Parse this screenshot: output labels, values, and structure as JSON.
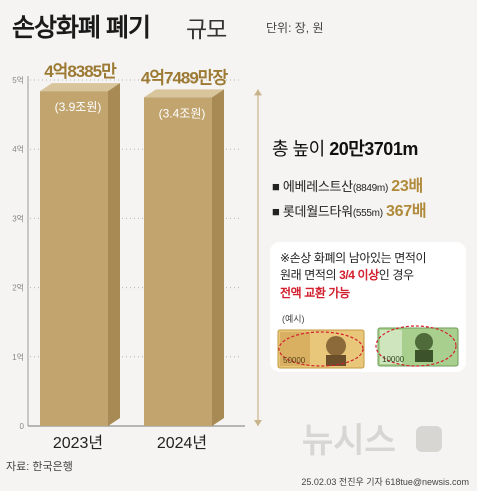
{
  "header": {
    "title_main": "손상화폐 폐기",
    "title_rest": "규모",
    "unit": "단위: 장, 원"
  },
  "chart_data": {
    "type": "bar",
    "categories": [
      "2023년",
      "2024년"
    ],
    "values": [
      4.8385,
      4.7489
    ],
    "value_labels": [
      "4억8385만",
      "4억7489만장"
    ],
    "sub_labels": [
      "(3.9조원)",
      "(3.4조원)"
    ],
    "ytick_labels": [
      "0",
      "1억",
      "2억",
      "3억",
      "4억",
      "5억"
    ],
    "ylim": [
      0,
      5
    ],
    "colors": {
      "front": "#c1a46e",
      "side": "#a88a55",
      "top": "#d8c59c",
      "label": "#9c7a33"
    }
  },
  "info": {
    "total_label": "총 높이",
    "total_value": "20만3701m",
    "items": [
      {
        "bullet": "■",
        "name": "에베레스트산",
        "detail": "(8849m)",
        "multiple": "23배"
      },
      {
        "bullet": "■",
        "name": "롯데월드타워",
        "detail": "(555m)",
        "multiple": "367배"
      }
    ]
  },
  "note": {
    "line1": "※손상 화폐의 남아있는 면적이",
    "line2_pre": "원래 면적의",
    "line2_hl": "3/4 이상",
    "line2_post": "인 경우",
    "line3": "전액 교환 가능",
    "example_label": "(예시)",
    "bills": [
      {
        "name": "50000-won-note",
        "denomination": "50000"
      },
      {
        "name": "10000-won-note",
        "denomination": "10000"
      }
    ]
  },
  "footer": {
    "source": "자료: 한국은행",
    "credit": "25.02.03 전진우 기자 618tue@newsis.com",
    "logo_text": "뉴시스"
  }
}
